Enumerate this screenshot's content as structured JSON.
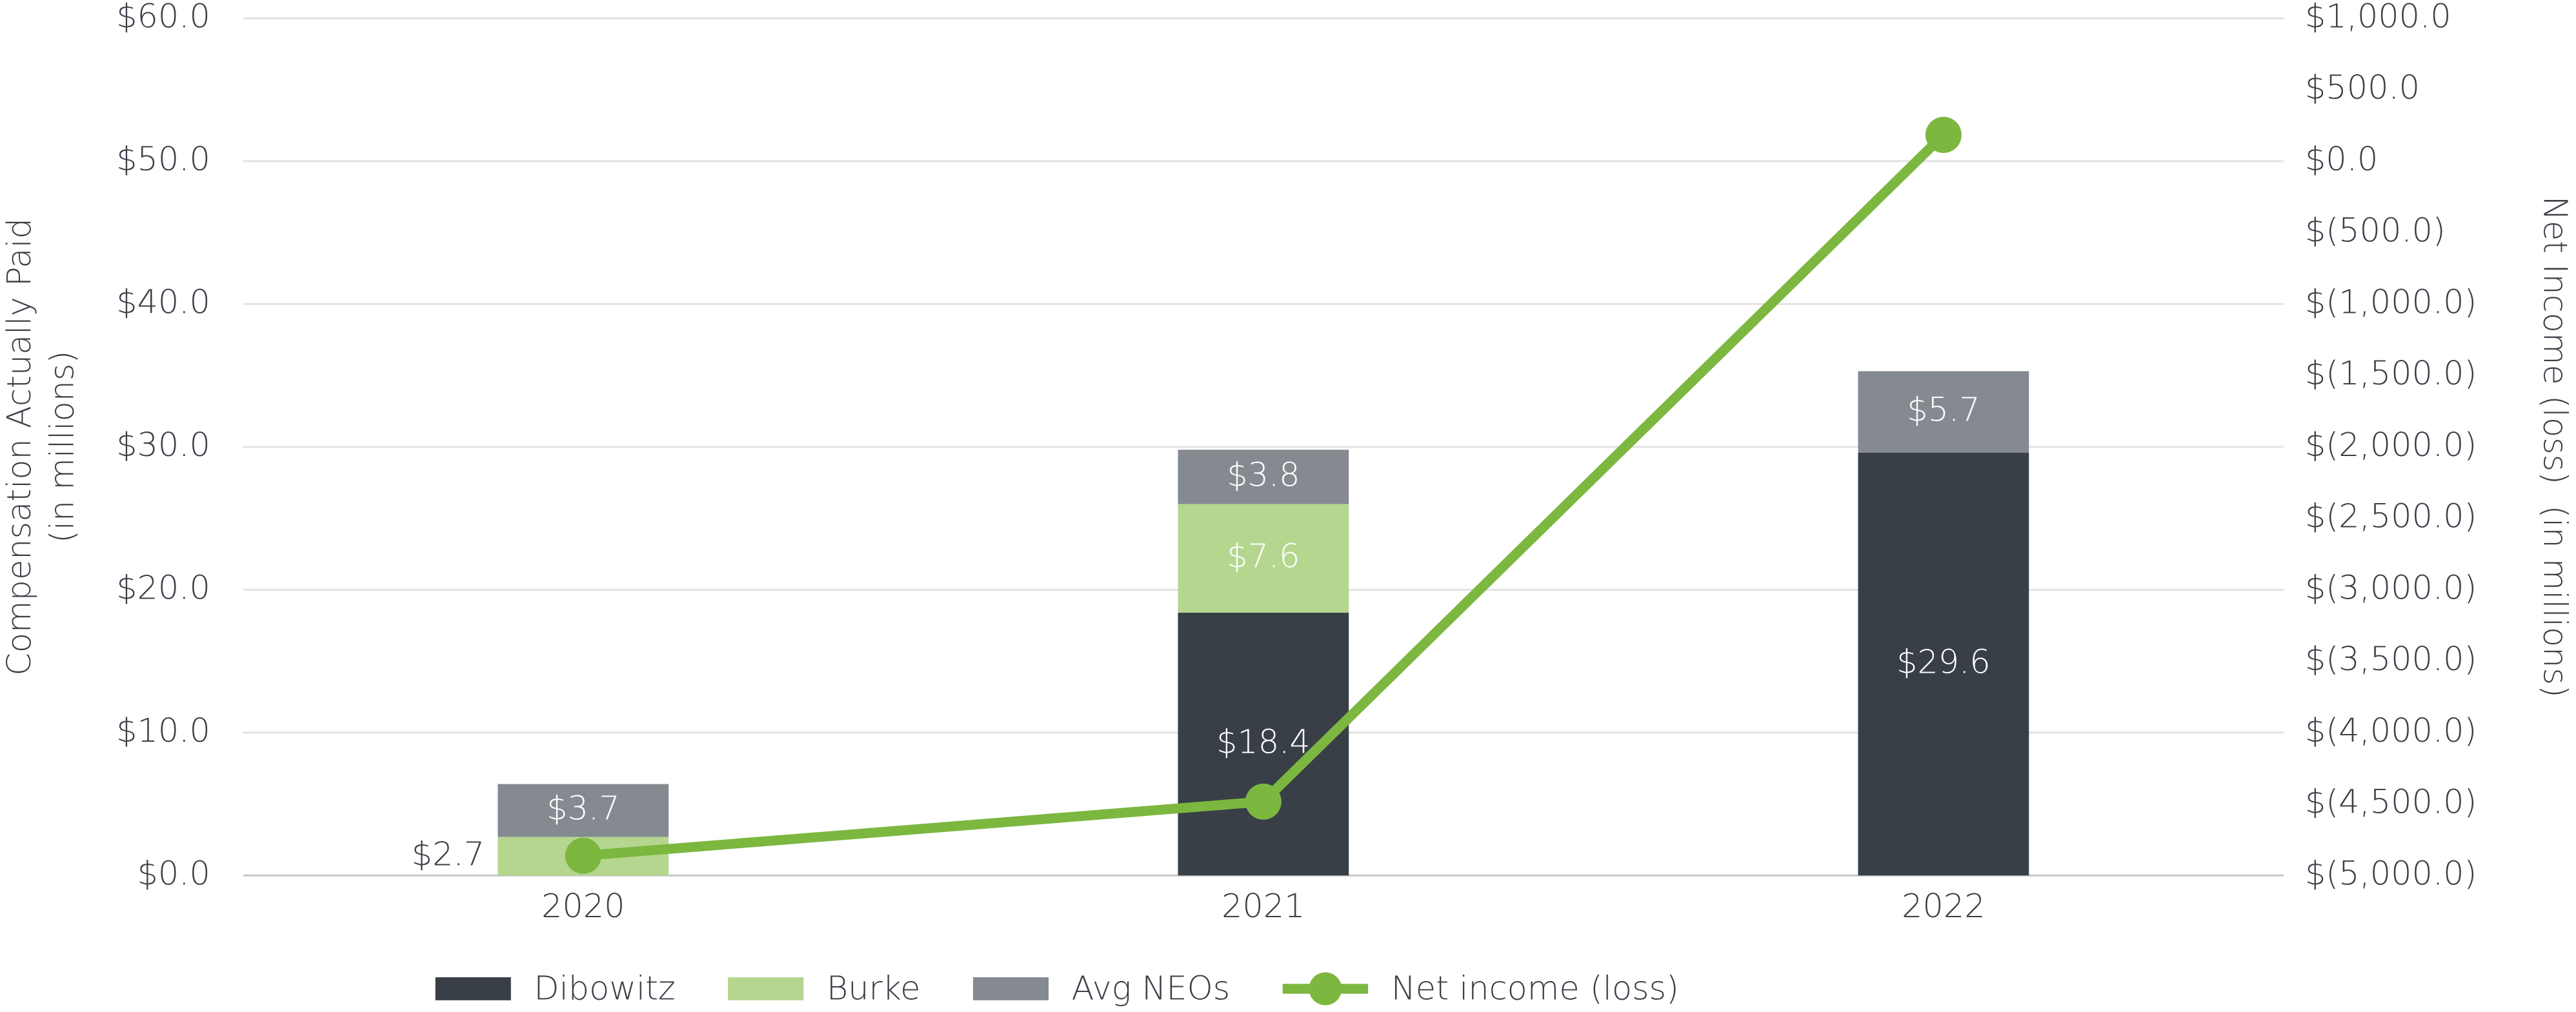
{
  "chart_data": {
    "type": "bar",
    "stacked": true,
    "categories": [
      "2020",
      "2021",
      "2022"
    ],
    "series": [
      {
        "name": "Dibowitz",
        "color": "#393f47",
        "values": [
          null,
          18.4,
          29.6
        ],
        "value_labels": [
          null,
          "$18.4",
          "$29.6"
        ]
      },
      {
        "name": "Burke",
        "color": "#b5d68f",
        "values": [
          2.7,
          7.6,
          null
        ],
        "value_labels": [
          "$2.7",
          "$7.6",
          null
        ]
      },
      {
        "name": "Avg NEOs",
        "color": "#858a91",
        "values": [
          3.7,
          3.8,
          5.7
        ],
        "value_labels": [
          "$3.7",
          "$3.8",
          "$5.7"
        ]
      },
      {
        "name": "Net income (loss)",
        "color": "#7cb73f",
        "type": "line",
        "axis": "y2",
        "values": [
          -4862,
          -4483,
          184
        ]
      }
    ],
    "y_label": [
      "Compensation Actually Paid",
      "(in millions)"
    ],
    "y2_label": "Net Income (loss)  (in millions)",
    "ylim": [
      0,
      60
    ],
    "yticks": [
      {
        "value": 0,
        "label": "$0.0"
      },
      {
        "value": 10,
        "label": "$10.0"
      },
      {
        "value": 20,
        "label": "$20.0"
      },
      {
        "value": 30,
        "label": "$30.0"
      },
      {
        "value": 40,
        "label": "$40.0"
      },
      {
        "value": 50,
        "label": "$50.0"
      },
      {
        "value": 60,
        "label": "$60.0"
      }
    ],
    "y2lim": [
      -5000,
      1000
    ],
    "y2ticks": [
      {
        "value": -5000,
        "label": "$(5,000.0)"
      },
      {
        "value": -4500,
        "label": "$(4,500.0)"
      },
      {
        "value": -4000,
        "label": "$(4,000.0)"
      },
      {
        "value": -3500,
        "label": "$(3,500.0)"
      },
      {
        "value": -3000,
        "label": "$(3,000.0)"
      },
      {
        "value": -2500,
        "label": "$(2,500.0)"
      },
      {
        "value": -2000,
        "label": "$(2,000.0)"
      },
      {
        "value": -1500,
        "label": "$(1,500.0)"
      },
      {
        "value": -1000,
        "label": "$(1,000.0)"
      },
      {
        "value": -500,
        "label": "$(500.0)"
      },
      {
        "value": 0,
        "label": "$0.0"
      },
      {
        "value": 500,
        "label": "$500.0"
      },
      {
        "value": 1000,
        "label": "$1,000.0"
      }
    ],
    "grid": true,
    "legend": "bottom"
  }
}
